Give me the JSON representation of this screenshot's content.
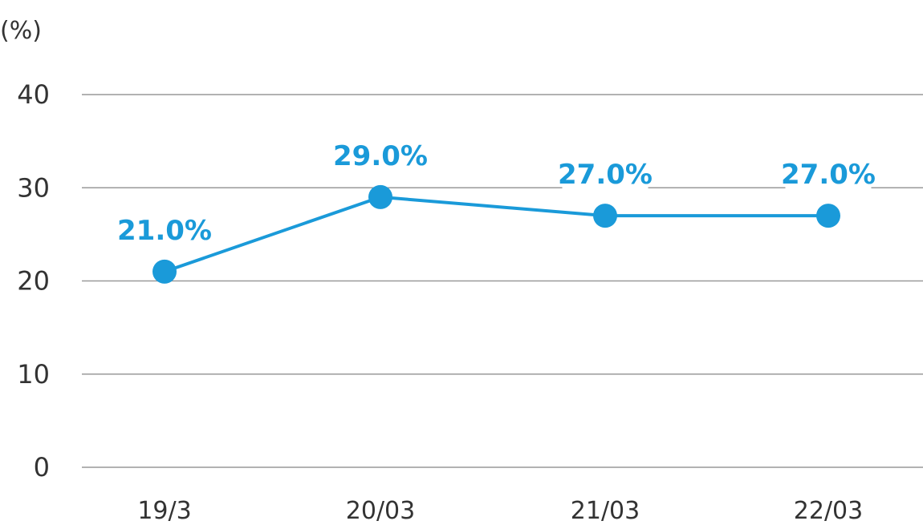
{
  "chart_data": {
    "type": "line",
    "ylabel": "(%)",
    "categories": [
      "19/3",
      "20/03",
      "21/03",
      "22/03"
    ],
    "values": [
      21.0,
      29.0,
      27.0,
      27.0
    ],
    "data_labels": [
      "21.0%",
      "29.0%",
      "27.0%",
      "27.0%"
    ],
    "ylim": [
      0,
      40
    ],
    "yticks": [
      "0",
      "10",
      "20",
      "30",
      "40"
    ],
    "grid": true,
    "legend": "none",
    "colors": {
      "line": "#1a9ad9",
      "label": "#1a9ad9",
      "grid": "#999999",
      "axis_text": "#333333"
    }
  }
}
